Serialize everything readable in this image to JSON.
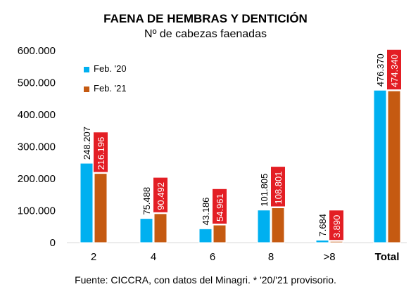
{
  "chart_data": {
    "type": "bar",
    "title": "FAENA DE HEMBRAS Y DENTICIÓN",
    "subtitle": "Nº de cabezas faenadas",
    "source": "Fuente: CICCRA, con datos del Minagri. * '20/'21 provisorio.",
    "categories": [
      "2",
      "4",
      "6",
      "8",
      ">8",
      "Total"
    ],
    "series": [
      {
        "name": "Feb. '20",
        "color": "#00B0F0",
        "values": [
          248207,
          75488,
          43186,
          101805,
          7684,
          476370
        ],
        "labels": [
          "248.207",
          "75.488",
          "43.186",
          "101.805",
          "7.684",
          "476.370"
        ]
      },
      {
        "name": "Feb. '21",
        "color": "#C55A11",
        "values": [
          216196,
          90492,
          54961,
          108801,
          3890,
          474340
        ],
        "labels": [
          "216.196",
          "90.492",
          "54.961",
          "108.801",
          "3.890",
          "474.340"
        ]
      }
    ],
    "yticks": [
      0,
      100000,
      200000,
      300000,
      400000,
      500000,
      600000
    ],
    "ytick_labels": [
      "0",
      "100.000",
      "200.000",
      "300.000",
      "400.000",
      "500.000",
      "600.000"
    ],
    "ylim": [
      0,
      600000
    ],
    "grid": false,
    "legend_position": "top-left",
    "label_box_color": "#E31E24"
  }
}
